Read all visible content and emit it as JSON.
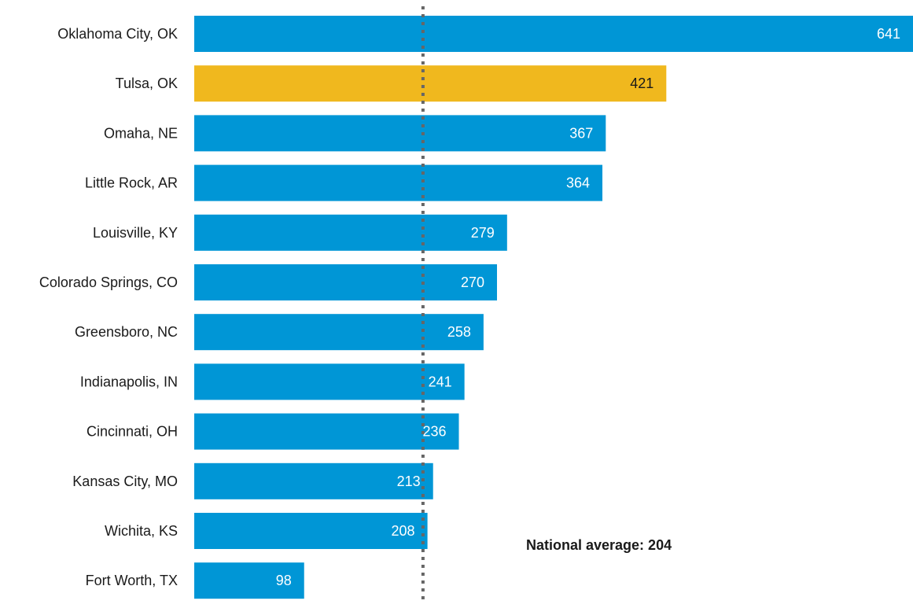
{
  "chart_data": {
    "type": "bar",
    "orientation": "horizontal",
    "categories": [
      "Oklahoma City, OK",
      "Tulsa, OK",
      "Omaha, NE",
      "Little Rock, AR",
      "Louisville, KY",
      "Colorado Springs, CO",
      "Greensboro, NC",
      "Indianapolis, IN",
      "Cincinnati, OH",
      "Kansas City, MO",
      "Wichita, KS",
      "Fort Worth, TX"
    ],
    "values": [
      641,
      421,
      367,
      364,
      279,
      270,
      258,
      241,
      236,
      213,
      208,
      98
    ],
    "highlight_category": "Tulsa, OK",
    "colors": {
      "bar": "#0096D6",
      "highlight_bar": "#F0B81E",
      "value_label": "#ffffff",
      "highlight_value_label": "#1a1a1a",
      "reference_line": "#666666"
    },
    "reference_line": {
      "value": 204,
      "label": "National average: 204",
      "style": "dotted"
    },
    "title": "",
    "xlabel": "",
    "ylabel": "",
    "xlim": [
      0,
      641
    ],
    "grid": false,
    "legend": "none"
  }
}
